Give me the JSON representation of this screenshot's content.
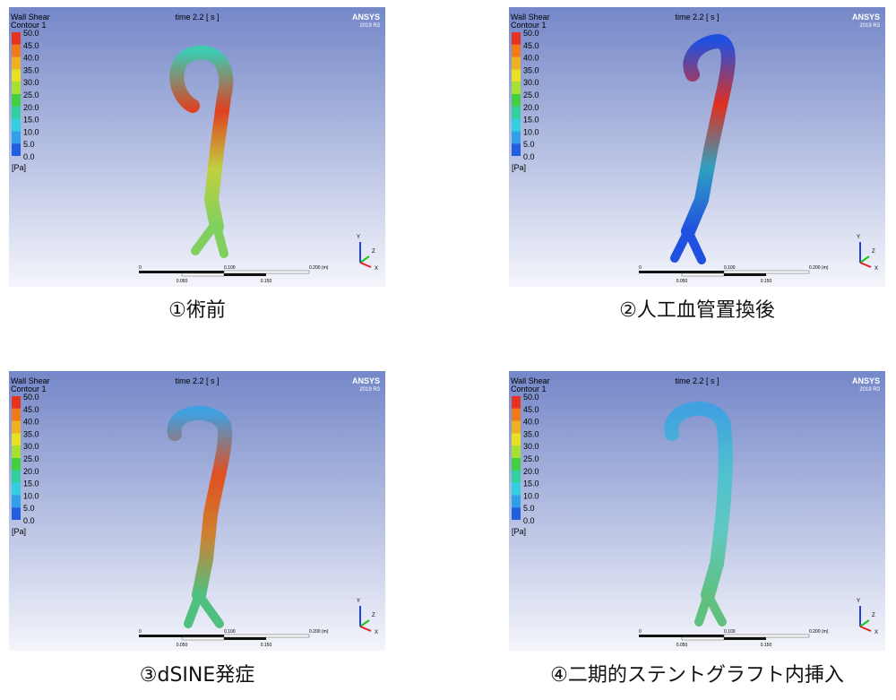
{
  "panels": [
    {
      "header": {
        "title": "Wall Shear",
        "subtitle": "Contour 1",
        "time": "time 2.2 [ s ]",
        "brand": "ANSYS",
        "version": "2019 R3"
      },
      "legend": {
        "labels": [
          "50.0",
          "45.0",
          "40.0",
          "35.0",
          "30.0",
          "25.0",
          "20.0",
          "15.0",
          "10.0",
          "5.0",
          "0.0"
        ],
        "unit": "[Pa]"
      },
      "scale": {
        "top": [
          "0",
          "0.100",
          "0.200 (m)"
        ],
        "bottom": [
          "0.050",
          "0.150"
        ]
      },
      "axes": [
        "Y",
        "Z",
        "X"
      ],
      "caption": "①術前"
    },
    {
      "header": {
        "title": "Wall Shear",
        "subtitle": "Contour 1",
        "time": "time 2.2 [ s ]",
        "brand": "ANSYS",
        "version": "2019 R3"
      },
      "legend": {
        "labels": [
          "50.0",
          "45.0",
          "40.0",
          "35.0",
          "30.0",
          "25.0",
          "20.0",
          "15.0",
          "10.0",
          "5.0",
          "0.0"
        ],
        "unit": "[Pa]"
      },
      "scale": {
        "top": [
          "0",
          "0.100",
          "0.200 (m)"
        ],
        "bottom": [
          "0.050",
          "0.150"
        ]
      },
      "axes": [
        "Y",
        "Z",
        "X"
      ],
      "caption": "②人工血管置換後"
    },
    {
      "header": {
        "title": "Wall Shear",
        "subtitle": "Contour 1",
        "time": "time 2.2 [ s ]",
        "brand": "ANSYS",
        "version": "2019 R3"
      },
      "legend": {
        "labels": [
          "50.0",
          "45.0",
          "40.0",
          "35.0",
          "30.0",
          "25.0",
          "20.0",
          "15.0",
          "10.0",
          "5.0",
          "0.0"
        ],
        "unit": "[Pa]"
      },
      "scale": {
        "top": [
          "0",
          "0.100",
          "0.200 (m)"
        ],
        "bottom": [
          "0.050",
          "0.150"
        ]
      },
      "axes": [
        "Y",
        "Z",
        "X"
      ],
      "caption": "③dSINE発症"
    },
    {
      "header": {
        "title": "Wall Shear",
        "subtitle": "Contour 1",
        "time": "time 2.2 [ s ]",
        "brand": "ANSYS",
        "version": "2019 R3"
      },
      "legend": {
        "labels": [
          "50.0",
          "45.0",
          "40.0",
          "35.0",
          "30.0",
          "25.0",
          "20.0",
          "15.0",
          "10.0",
          "5.0",
          "0.0"
        ],
        "unit": "[Pa]"
      },
      "scale": {
        "top": [
          "0",
          "0.100",
          "0.200 (m)"
        ],
        "bottom": [
          "0.050",
          "0.150"
        ]
      },
      "axes": [
        "Y",
        "Z",
        "X"
      ],
      "caption": "④二期的ステントグラフト内挿入"
    }
  ]
}
